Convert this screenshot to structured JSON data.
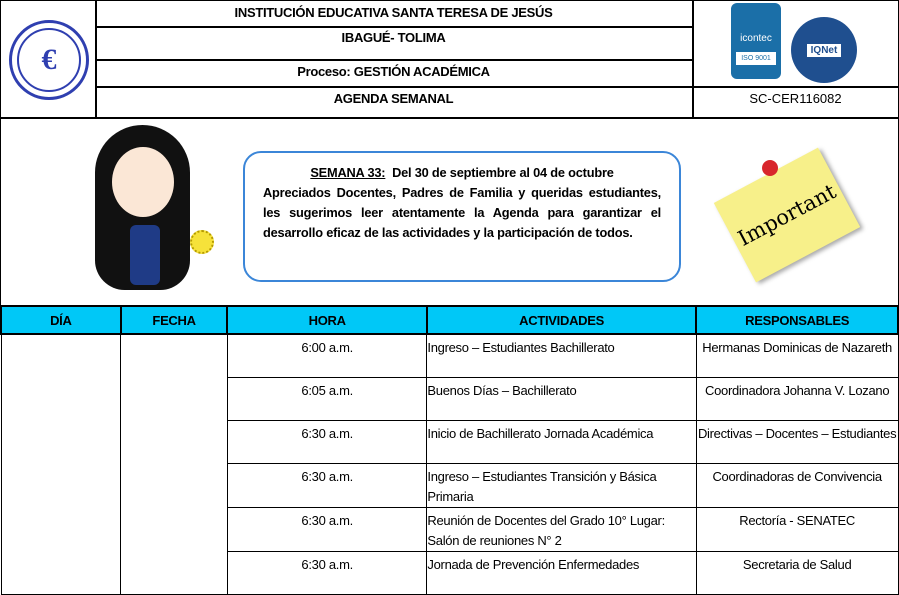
{
  "header": {
    "institution": "INSTITUCIÓN EDUCATIVA SANTA TERESA DE JESÚS",
    "city": "IBAGUÉ- TOLIMA",
    "process": "Proceso: GESTIÓN ACADÉMICA",
    "document": "AGENDA SEMANAL",
    "certificate": "SC-CER116082",
    "logo_text": "ESTJ",
    "cert_logos": {
      "icontec": "icontec",
      "iso": "ISO 9001",
      "iqnet": "IQNet"
    }
  },
  "banner": {
    "week_label": "SEMANA 33:",
    "week_range": "Del 30 de septiembre al 04 de octubre",
    "message": "Apreciados Docentes, Padres de Familia y queridas estudiantes, les sugerimos leer atentamente la Agenda para garantizar el desarrollo eficaz de las actividades y la participación de todos.",
    "sticky_note": "Important"
  },
  "colors": {
    "table_header": "#00c8f7",
    "banner_border": "#3b86d8",
    "note": "#f7f08a"
  },
  "table": {
    "columns": [
      "DÍA",
      "FECHA",
      "HORA",
      "ACTIVIDADES",
      "RESPONSABLES"
    ],
    "rows": [
      {
        "hora": "6:00 a.m.",
        "actividad": "Ingreso – Estudiantes Bachillerato",
        "responsable": "Hermanas Dominicas de Nazareth"
      },
      {
        "hora": "6:05 a.m.",
        "actividad": "Buenos Días – Bachillerato",
        "responsable": "Coordinadora Johanna V. Lozano"
      },
      {
        "hora": "6:30 a.m.",
        "actividad": "Inicio de Bachillerato Jornada Académica",
        "responsable": "Directivas – Docentes – Estudiantes"
      },
      {
        "hora": "6:30 a.m.",
        "actividad": "Ingreso – Estudiantes Transición y Básica Primaria",
        "responsable": "Coordinadoras de Convivencia"
      },
      {
        "hora": "6:30 a.m.",
        "actividad": "Reunión de Docentes del Grado 10° Lugar: Salón de reuniones N° 2",
        "responsable": "Rectoría - SENATEC"
      },
      {
        "hora": "6:30 a.m.",
        "actividad": "Jornada de Prevención Enfermedades",
        "responsable": "Secretaria de Salud"
      }
    ]
  }
}
